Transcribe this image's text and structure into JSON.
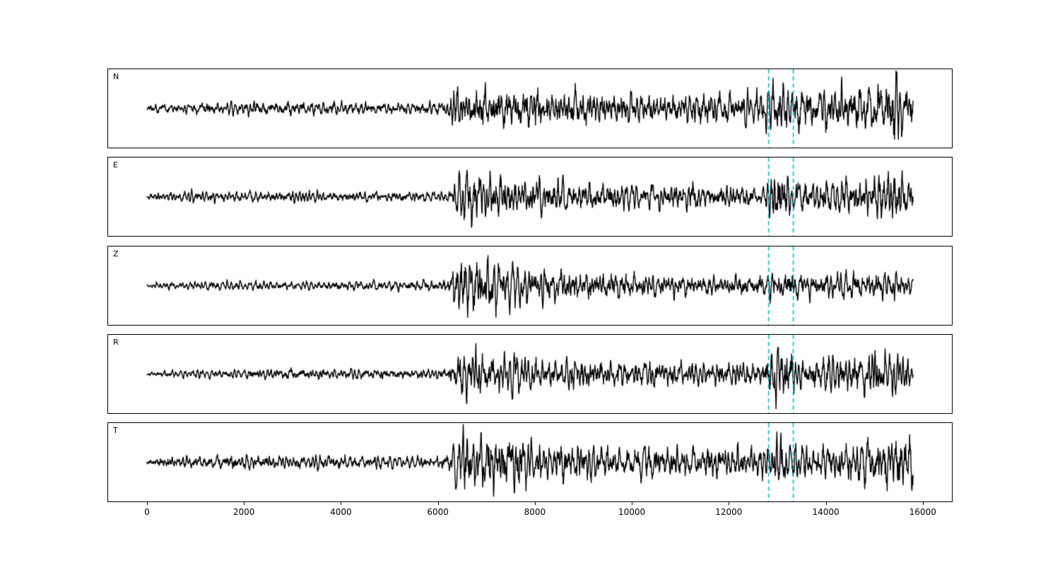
{
  "figure": {
    "background": "#ffffff",
    "trace_color": "#000000",
    "axis_color": "#000000"
  },
  "chart_data": {
    "type": "line",
    "title": "",
    "xlabel": "",
    "ylabel": "",
    "description": "Five-component seismogram waveform traces (N, E, Z, R, T) sharing one x-axis, with two vertical dashed cyan marker lines on every panel",
    "xlim": [
      -800,
      16600
    ],
    "x_start": 0,
    "x_end": 15800,
    "n_points": 2600,
    "xticks": [
      0,
      2000,
      4000,
      6000,
      8000,
      10000,
      12000,
      14000,
      16000
    ],
    "xtick_labels": [
      "0",
      "2000",
      "4000",
      "6000",
      "8000",
      "10000",
      "12000",
      "14000",
      "16000"
    ],
    "grid": false,
    "legend": false,
    "marker_lines": {
      "x_values": [
        12820,
        13330
      ],
      "style": "dashed",
      "color": "#00bfbf"
    },
    "panels": [
      {
        "label": "N",
        "seed": 101,
        "envelope": [
          [
            0,
            0.14
          ],
          [
            800,
            0.16
          ],
          [
            1200,
            0.22
          ],
          [
            2500,
            0.22
          ],
          [
            3600,
            0.24
          ],
          [
            4800,
            0.2
          ],
          [
            6100,
            0.2
          ],
          [
            6350,
            0.6
          ],
          [
            6600,
            0.72
          ],
          [
            7300,
            0.68
          ],
          [
            7900,
            0.72
          ],
          [
            8600,
            0.6
          ],
          [
            9500,
            0.55
          ],
          [
            10500,
            0.52
          ],
          [
            11500,
            0.5
          ],
          [
            12500,
            0.48
          ],
          [
            12800,
            0.6
          ],
          [
            12950,
            1.0
          ],
          [
            13150,
            0.85
          ],
          [
            13500,
            0.6
          ],
          [
            14000,
            0.7
          ],
          [
            14600,
            0.8
          ],
          [
            15100,
            0.85
          ],
          [
            15600,
            0.9
          ],
          [
            15800,
            0.75
          ]
        ]
      },
      {
        "label": "E",
        "seed": 202,
        "envelope": [
          [
            0,
            0.12
          ],
          [
            700,
            0.18
          ],
          [
            1500,
            0.2
          ],
          [
            2200,
            0.16
          ],
          [
            3000,
            0.2
          ],
          [
            4000,
            0.18
          ],
          [
            5000,
            0.16
          ],
          [
            6200,
            0.18
          ],
          [
            6450,
            0.8
          ],
          [
            6900,
            0.85
          ],
          [
            7300,
            0.7
          ],
          [
            7800,
            0.55
          ],
          [
            8500,
            0.6
          ],
          [
            9300,
            0.5
          ],
          [
            10200,
            0.45
          ],
          [
            11000,
            0.42
          ],
          [
            12000,
            0.4
          ],
          [
            12700,
            0.38
          ],
          [
            12950,
            1.0
          ],
          [
            13200,
            0.75
          ],
          [
            13600,
            0.5
          ],
          [
            14200,
            0.55
          ],
          [
            14800,
            0.75
          ],
          [
            15400,
            0.8
          ],
          [
            15800,
            0.6
          ]
        ]
      },
      {
        "label": "Z",
        "seed": 303,
        "envelope": [
          [
            0,
            0.1
          ],
          [
            1000,
            0.14
          ],
          [
            2000,
            0.16
          ],
          [
            3000,
            0.14
          ],
          [
            4200,
            0.16
          ],
          [
            5200,
            0.18
          ],
          [
            6200,
            0.2
          ],
          [
            6400,
            0.85
          ],
          [
            6700,
            1.0
          ],
          [
            7100,
            0.9
          ],
          [
            7500,
            0.7
          ],
          [
            8000,
            0.6
          ],
          [
            8700,
            0.5
          ],
          [
            9500,
            0.45
          ],
          [
            10500,
            0.42
          ],
          [
            11500,
            0.4
          ],
          [
            12500,
            0.38
          ],
          [
            12900,
            0.5
          ],
          [
            13300,
            0.45
          ],
          [
            14000,
            0.4
          ],
          [
            14700,
            0.45
          ],
          [
            15300,
            0.42
          ],
          [
            15800,
            0.35
          ]
        ]
      },
      {
        "label": "R",
        "seed": 404,
        "envelope": [
          [
            0,
            0.1
          ],
          [
            1000,
            0.14
          ],
          [
            2000,
            0.16
          ],
          [
            3200,
            0.18
          ],
          [
            4500,
            0.18
          ],
          [
            5600,
            0.16
          ],
          [
            6200,
            0.18
          ],
          [
            6400,
            0.7
          ],
          [
            6800,
            0.8
          ],
          [
            7200,
            0.7
          ],
          [
            7700,
            0.55
          ],
          [
            8400,
            0.5
          ],
          [
            9200,
            0.5
          ],
          [
            10000,
            0.45
          ],
          [
            11000,
            0.42
          ],
          [
            12000,
            0.4
          ],
          [
            12700,
            0.45
          ],
          [
            12950,
            1.0
          ],
          [
            13200,
            0.7
          ],
          [
            13700,
            0.5
          ],
          [
            14300,
            0.6
          ],
          [
            14900,
            0.85
          ],
          [
            15400,
            0.8
          ],
          [
            15800,
            0.55
          ]
        ]
      },
      {
        "label": "T",
        "seed": 505,
        "envelope": [
          [
            0,
            0.14
          ],
          [
            800,
            0.22
          ],
          [
            1600,
            0.24
          ],
          [
            2600,
            0.22
          ],
          [
            3800,
            0.24
          ],
          [
            5000,
            0.2
          ],
          [
            6200,
            0.22
          ],
          [
            6450,
            0.85
          ],
          [
            6900,
            0.95
          ],
          [
            7400,
            0.8
          ],
          [
            7600,
            1.0
          ],
          [
            8000,
            0.7
          ],
          [
            8800,
            0.65
          ],
          [
            9600,
            0.6
          ],
          [
            10400,
            0.55
          ],
          [
            11200,
            0.55
          ],
          [
            12200,
            0.5
          ],
          [
            12800,
            0.6
          ],
          [
            13000,
            0.95
          ],
          [
            13400,
            0.7
          ],
          [
            14000,
            0.65
          ],
          [
            14700,
            0.75
          ],
          [
            15300,
            0.85
          ],
          [
            15800,
            1.0
          ]
        ]
      }
    ]
  }
}
